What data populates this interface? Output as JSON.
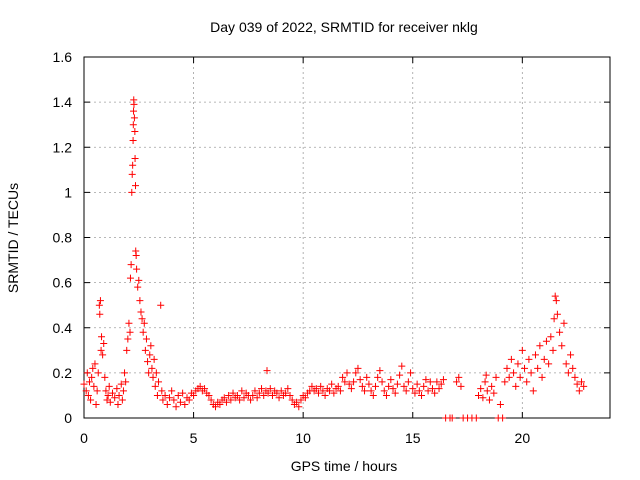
{
  "chart_data": {
    "type": "scatter",
    "title": "Day 039 of 2022, SRMTID for receiver nklg",
    "xlabel": "GPS time / hours",
    "ylabel": "SRMTID / TECUs",
    "xlim": [
      0,
      24
    ],
    "ylim": [
      0,
      1.6
    ],
    "xticks": [
      0,
      5,
      10,
      15,
      20
    ],
    "yticks": [
      0,
      0.2,
      0.4,
      0.6,
      0.8,
      1,
      1.2,
      1.4,
      1.6
    ],
    "xtick_labels": [
      "0",
      "5",
      "10",
      "15",
      "20"
    ],
    "ytick_labels": [
      "0",
      "0.2",
      "0.4",
      "0.6",
      "0.8",
      "1",
      "1.2",
      "1.4",
      "1.6"
    ],
    "grid": true,
    "marker": "+",
    "color": "#ff0000",
    "series": [
      {
        "name": "SRMTID",
        "points": [
          [
            0.0,
            0.15
          ],
          [
            0.1,
            0.12
          ],
          [
            0.15,
            0.2
          ],
          [
            0.2,
            0.1
          ],
          [
            0.25,
            0.16
          ],
          [
            0.3,
            0.08
          ],
          [
            0.35,
            0.18
          ],
          [
            0.4,
            0.22
          ],
          [
            0.45,
            0.14
          ],
          [
            0.5,
            0.24
          ],
          [
            0.55,
            0.06
          ],
          [
            0.6,
            0.12
          ],
          [
            0.65,
            0.2
          ],
          [
            0.7,
            0.5
          ],
          [
            0.72,
            0.46
          ],
          [
            0.75,
            0.52
          ],
          [
            0.78,
            0.3
          ],
          [
            0.8,
            0.36
          ],
          [
            0.85,
            0.28
          ],
          [
            0.9,
            0.33
          ],
          [
            0.95,
            0.18
          ],
          [
            1.0,
            0.12
          ],
          [
            1.05,
            0.08
          ],
          [
            1.1,
            0.1
          ],
          [
            1.15,
            0.14
          ],
          [
            1.2,
            0.07
          ],
          [
            1.3,
            0.11
          ],
          [
            1.4,
            0.09
          ],
          [
            1.5,
            0.13
          ],
          [
            1.55,
            0.06
          ],
          [
            1.6,
            0.1
          ],
          [
            1.7,
            0.15
          ],
          [
            1.75,
            0.08
          ],
          [
            1.8,
            0.12
          ],
          [
            1.85,
            0.2
          ],
          [
            1.9,
            0.16
          ],
          [
            1.95,
            0.3
          ],
          [
            2.0,
            0.35
          ],
          [
            2.05,
            0.42
          ],
          [
            2.1,
            0.38
          ],
          [
            2.12,
            0.62
          ],
          [
            2.15,
            0.68
          ],
          [
            2.18,
            1.0
          ],
          [
            2.2,
            1.08
          ],
          [
            2.22,
            1.12
          ],
          [
            2.24,
            1.23
          ],
          [
            2.25,
            1.3
          ],
          [
            2.26,
            1.36
          ],
          [
            2.27,
            1.41
          ],
          [
            2.28,
            1.39
          ],
          [
            2.3,
            1.33
          ],
          [
            2.32,
            1.27
          ],
          [
            2.33,
            1.15
          ],
          [
            2.35,
            1.03
          ],
          [
            2.36,
            0.74
          ],
          [
            2.38,
            0.72
          ],
          [
            2.4,
            0.66
          ],
          [
            2.45,
            0.58
          ],
          [
            2.5,
            0.61
          ],
          [
            2.55,
            0.52
          ],
          [
            2.6,
            0.47
          ],
          [
            2.65,
            0.44
          ],
          [
            2.7,
            0.38
          ],
          [
            2.75,
            0.42
          ],
          [
            2.8,
            0.3
          ],
          [
            2.85,
            0.35
          ],
          [
            2.9,
            0.25
          ],
          [
            2.95,
            0.2
          ],
          [
            3.0,
            0.28
          ],
          [
            3.05,
            0.32
          ],
          [
            3.1,
            0.22
          ],
          [
            3.15,
            0.18
          ],
          [
            3.2,
            0.26
          ],
          [
            3.25,
            0.14
          ],
          [
            3.3,
            0.2
          ],
          [
            3.35,
            0.1
          ],
          [
            3.4,
            0.16
          ],
          [
            3.5,
            0.5
          ],
          [
            3.55,
            0.12
          ],
          [
            3.6,
            0.08
          ],
          [
            3.7,
            0.1
          ],
          [
            3.8,
            0.06
          ],
          [
            3.9,
            0.09
          ],
          [
            4.0,
            0.12
          ],
          [
            4.1,
            0.08
          ],
          [
            4.2,
            0.05
          ],
          [
            4.3,
            0.1
          ],
          [
            4.4,
            0.07
          ],
          [
            4.5,
            0.11
          ],
          [
            4.6,
            0.06
          ],
          [
            4.7,
            0.09
          ],
          [
            4.8,
            0.08
          ],
          [
            4.9,
            0.11
          ],
          [
            5.0,
            0.1
          ],
          [
            5.1,
            0.12
          ],
          [
            5.2,
            0.13
          ],
          [
            5.3,
            0.14
          ],
          [
            5.4,
            0.12
          ],
          [
            5.5,
            0.13
          ],
          [
            5.6,
            0.11
          ],
          [
            5.7,
            0.1
          ],
          [
            5.8,
            0.08
          ],
          [
            5.9,
            0.06
          ],
          [
            6.0,
            0.05
          ],
          [
            6.1,
            0.07
          ],
          [
            6.2,
            0.06
          ],
          [
            6.3,
            0.08
          ],
          [
            6.4,
            0.09
          ],
          [
            6.5,
            0.07
          ],
          [
            6.6,
            0.1
          ],
          [
            6.7,
            0.08
          ],
          [
            6.8,
            0.11
          ],
          [
            6.9,
            0.09
          ],
          [
            7.0,
            0.1
          ],
          [
            7.1,
            0.08
          ],
          [
            7.2,
            0.12
          ],
          [
            7.3,
            0.09
          ],
          [
            7.4,
            0.11
          ],
          [
            7.5,
            0.1
          ],
          [
            7.6,
            0.08
          ],
          [
            7.7,
            0.1
          ],
          [
            7.8,
            0.12
          ],
          [
            7.9,
            0.09
          ],
          [
            8.0,
            0.11
          ],
          [
            8.1,
            0.13
          ],
          [
            8.2,
            0.1
          ],
          [
            8.3,
            0.12
          ],
          [
            8.35,
            0.21
          ],
          [
            8.4,
            0.11
          ],
          [
            8.5,
            0.13
          ],
          [
            8.6,
            0.1
          ],
          [
            8.7,
            0.12
          ],
          [
            8.8,
            0.11
          ],
          [
            8.9,
            0.09
          ],
          [
            9.0,
            0.12
          ],
          [
            9.1,
            0.1
          ],
          [
            9.2,
            0.11
          ],
          [
            9.3,
            0.13
          ],
          [
            9.4,
            0.1
          ],
          [
            9.5,
            0.08
          ],
          [
            9.6,
            0.06
          ],
          [
            9.7,
            0.07
          ],
          [
            9.8,
            0.05
          ],
          [
            9.9,
            0.08
          ],
          [
            10.0,
            0.1
          ],
          [
            10.1,
            0.09
          ],
          [
            10.2,
            0.11
          ],
          [
            10.3,
            0.12
          ],
          [
            10.4,
            0.14
          ],
          [
            10.5,
            0.12
          ],
          [
            10.6,
            0.13
          ],
          [
            10.7,
            0.11
          ],
          [
            10.8,
            0.14
          ],
          [
            10.9,
            0.12
          ],
          [
            11.0,
            0.1
          ],
          [
            11.1,
            0.13
          ],
          [
            11.2,
            0.12
          ],
          [
            11.3,
            0.15
          ],
          [
            11.4,
            0.11
          ],
          [
            11.5,
            0.13
          ],
          [
            11.6,
            0.14
          ],
          [
            11.7,
            0.12
          ],
          [
            11.8,
            0.18
          ],
          [
            11.9,
            0.16
          ],
          [
            12.0,
            0.2
          ],
          [
            12.1,
            0.15
          ],
          [
            12.2,
            0.13
          ],
          [
            12.3,
            0.16
          ],
          [
            12.4,
            0.2
          ],
          [
            12.5,
            0.22
          ],
          [
            12.6,
            0.17
          ],
          [
            12.7,
            0.14
          ],
          [
            12.8,
            0.12
          ],
          [
            12.9,
            0.18
          ],
          [
            13.0,
            0.15
          ],
          [
            13.1,
            0.12
          ],
          [
            13.2,
            0.1
          ],
          [
            13.3,
            0.14
          ],
          [
            13.4,
            0.18
          ],
          [
            13.5,
            0.21
          ],
          [
            13.6,
            0.16
          ],
          [
            13.7,
            0.12
          ],
          [
            13.8,
            0.1
          ],
          [
            13.9,
            0.14
          ],
          [
            14.0,
            0.17
          ],
          [
            14.1,
            0.13
          ],
          [
            14.2,
            0.11
          ],
          [
            14.3,
            0.15
          ],
          [
            14.4,
            0.19
          ],
          [
            14.5,
            0.23
          ],
          [
            14.6,
            0.14
          ],
          [
            14.7,
            0.12
          ],
          [
            14.8,
            0.16
          ],
          [
            14.9,
            0.2
          ],
          [
            15.0,
            0.13
          ],
          [
            15.1,
            0.11
          ],
          [
            15.2,
            0.15
          ],
          [
            15.3,
            0.12
          ],
          [
            15.4,
            0.1
          ],
          [
            15.5,
            0.14
          ],
          [
            15.6,
            0.17
          ],
          [
            15.7,
            0.12
          ],
          [
            15.8,
            0.16
          ],
          [
            15.9,
            0.13
          ],
          [
            16.0,
            0.11
          ],
          [
            16.1,
            0.16
          ],
          [
            16.2,
            0.13
          ],
          [
            16.3,
            0.15
          ],
          [
            16.4,
            0.17
          ],
          [
            16.5,
            0.0
          ],
          [
            16.7,
            0.0
          ],
          [
            16.8,
            0.0
          ],
          [
            17.0,
            0.16
          ],
          [
            17.1,
            0.18
          ],
          [
            17.2,
            0.14
          ],
          [
            17.3,
            0.0
          ],
          [
            17.5,
            0.0
          ],
          [
            17.7,
            0.0
          ],
          [
            17.9,
            0.0
          ],
          [
            18.0,
            0.1
          ],
          [
            18.1,
            0.13
          ],
          [
            18.2,
            0.09
          ],
          [
            18.3,
            0.16
          ],
          [
            18.35,
            0.19
          ],
          [
            18.4,
            0.12
          ],
          [
            18.5,
            0.08
          ],
          [
            18.6,
            0.14
          ],
          [
            18.7,
            0.11
          ],
          [
            18.8,
            0.18
          ],
          [
            18.9,
            0.0
          ],
          [
            19.0,
            0.06
          ],
          [
            19.1,
            0.0
          ],
          [
            19.2,
            0.16
          ],
          [
            19.3,
            0.22
          ],
          [
            19.4,
            0.18
          ],
          [
            19.5,
            0.26
          ],
          [
            19.6,
            0.2
          ],
          [
            19.7,
            0.14
          ],
          [
            19.8,
            0.24
          ],
          [
            19.9,
            0.18
          ],
          [
            20.0,
            0.3
          ],
          [
            20.1,
            0.22
          ],
          [
            20.2,
            0.16
          ],
          [
            20.3,
            0.26
          ],
          [
            20.4,
            0.2
          ],
          [
            20.5,
            0.12
          ],
          [
            20.6,
            0.28
          ],
          [
            20.7,
            0.22
          ],
          [
            20.8,
            0.32
          ],
          [
            20.9,
            0.18
          ],
          [
            21.0,
            0.26
          ],
          [
            21.1,
            0.34
          ],
          [
            21.2,
            0.24
          ],
          [
            21.3,
            0.36
          ],
          [
            21.4,
            0.3
          ],
          [
            21.45,
            0.44
          ],
          [
            21.5,
            0.54
          ],
          [
            21.55,
            0.52
          ],
          [
            21.6,
            0.46
          ],
          [
            21.7,
            0.38
          ],
          [
            21.8,
            0.32
          ],
          [
            21.9,
            0.42
          ],
          [
            22.0,
            0.24
          ],
          [
            22.1,
            0.2
          ],
          [
            22.2,
            0.28
          ],
          [
            22.3,
            0.22
          ],
          [
            22.4,
            0.18
          ],
          [
            22.5,
            0.15
          ],
          [
            22.6,
            0.12
          ],
          [
            22.7,
            0.16
          ],
          [
            22.8,
            0.14
          ]
        ]
      }
    ]
  }
}
